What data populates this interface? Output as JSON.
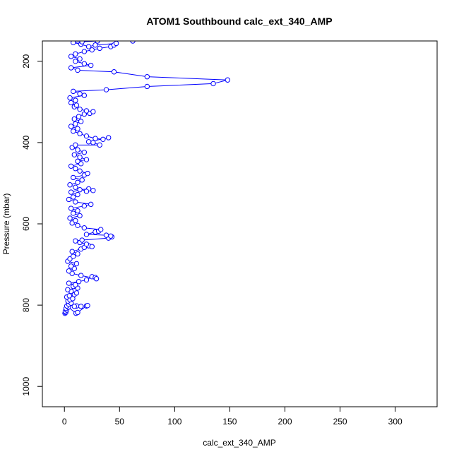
{
  "chart_data": {
    "type": "scatter",
    "title": "ATOM1 Southbound calc_ext_340_AMP",
    "xlabel": "calc_ext_340_AMP",
    "ylabel": "Pressure (mbar)",
    "xlim": [
      -20,
      338
    ],
    "ylim": [
      1050,
      150
    ],
    "y_reversed": true,
    "x_ticks": [
      0,
      50,
      100,
      150,
      200,
      250,
      300
    ],
    "y_ticks": [
      200,
      400,
      600,
      800,
      1000
    ],
    "grid": false,
    "legend": "none",
    "series": [
      {
        "marker": "open-circle",
        "connected": true,
        "color": "#0000ff",
        "points": [
          [
            0.5,
            820
          ],
          [
            1.2,
            818
          ],
          [
            0.8,
            815
          ],
          [
            2.0,
            812
          ],
          [
            1.5,
            808
          ],
          [
            3.5,
            805
          ],
          [
            2.2,
            802
          ],
          [
            10.5,
            820
          ],
          [
            12.0,
            818
          ],
          [
            20.0,
            802
          ],
          [
            21.0,
            801
          ],
          [
            15.0,
            803
          ],
          [
            11.0,
            802
          ],
          [
            9.0,
            803
          ],
          [
            4.0,
            798
          ],
          [
            6.0,
            795
          ],
          [
            3.2,
            790
          ],
          [
            5.0,
            787
          ],
          [
            7.5,
            784
          ],
          [
            2.1,
            780
          ],
          [
            4.5,
            777
          ],
          [
            9.0,
            774
          ],
          [
            11.0,
            770
          ],
          [
            6.0,
            766
          ],
          [
            3.0,
            762
          ],
          [
            12.0,
            758
          ],
          [
            8.0,
            754
          ],
          [
            10.0,
            750
          ],
          [
            4.0,
            746
          ],
          [
            13.0,
            742
          ],
          [
            20.0,
            738
          ],
          [
            25.0,
            730
          ],
          [
            28.0,
            732
          ],
          [
            29.0,
            735
          ],
          [
            15.0,
            727
          ],
          [
            7.0,
            722
          ],
          [
            4.0,
            716
          ],
          [
            9.0,
            710
          ],
          [
            6.0,
            704
          ],
          [
            11.0,
            698
          ],
          [
            3.0,
            692
          ],
          [
            5.0,
            686
          ],
          [
            8.0,
            680
          ],
          [
            12.0,
            674
          ],
          [
            7.0,
            668
          ],
          [
            15.0,
            662
          ],
          [
            18.0,
            658
          ],
          [
            22.0,
            654
          ],
          [
            25.0,
            656
          ],
          [
            20.0,
            650
          ],
          [
            14.0,
            646
          ],
          [
            10.0,
            642
          ],
          [
            16.0,
            640
          ],
          [
            40.0,
            635
          ],
          [
            43.0,
            632
          ],
          [
            42.0,
            630
          ],
          [
            38.0,
            628
          ],
          [
            20.0,
            626
          ],
          [
            28.0,
            620
          ],
          [
            31.0,
            618
          ],
          [
            33.0,
            614
          ],
          [
            18.0,
            610
          ],
          [
            12.0,
            604
          ],
          [
            7.0,
            598
          ],
          [
            10.0,
            592
          ],
          [
            5.0,
            586
          ],
          [
            14.0,
            580
          ],
          [
            8.0,
            574
          ],
          [
            12.0,
            568
          ],
          [
            6.0,
            562
          ],
          [
            18.0,
            556
          ],
          [
            24.0,
            552
          ],
          [
            10.0,
            546
          ],
          [
            4.0,
            540
          ],
          [
            8.0,
            534
          ],
          [
            12.0,
            528
          ],
          [
            6.0,
            522
          ],
          [
            14.0,
            516
          ],
          [
            22.0,
            514
          ],
          [
            26.0,
            518
          ],
          [
            20.0,
            520
          ],
          [
            10.0,
            510
          ],
          [
            5.0,
            504
          ],
          [
            12.0,
            498
          ],
          [
            16.0,
            492
          ],
          [
            8.0,
            486
          ],
          [
            18.0,
            480
          ],
          [
            21.0,
            476
          ],
          [
            14.0,
            470
          ],
          [
            10.0,
            464
          ],
          [
            6.0,
            458
          ],
          [
            15.0,
            452
          ],
          [
            12.0,
            446
          ],
          [
            20.0,
            442
          ],
          [
            14.0,
            436
          ],
          [
            9.0,
            430
          ],
          [
            18.0,
            424
          ],
          [
            12.0,
            418
          ],
          [
            7.0,
            412
          ],
          [
            10.0,
            406
          ],
          [
            32.0,
            406
          ],
          [
            26.0,
            400
          ],
          [
            22.0,
            398
          ],
          [
            40.0,
            388
          ],
          [
            35.0,
            392
          ],
          [
            28.0,
            390
          ],
          [
            20.0,
            384
          ],
          [
            14.0,
            378
          ],
          [
            8.0,
            372
          ],
          [
            12.0,
            366
          ],
          [
            6.0,
            360
          ],
          [
            10.0,
            354
          ],
          [
            15.0,
            348
          ],
          [
            9.0,
            342
          ],
          [
            13.0,
            336
          ],
          [
            18.0,
            330
          ],
          [
            23.0,
            328
          ],
          [
            26.0,
            324
          ],
          [
            20.0,
            322
          ],
          [
            14.0,
            318
          ],
          [
            9.0,
            312
          ],
          [
            11.0,
            308
          ],
          [
            6.0,
            302
          ],
          [
            10.0,
            296
          ],
          [
            5.0,
            290
          ],
          [
            18.0,
            284
          ],
          [
            14.0,
            280
          ],
          [
            8.0,
            274
          ],
          [
            38.0,
            270
          ],
          [
            75.0,
            262
          ],
          [
            135.0,
            255
          ],
          [
            148.0,
            246
          ],
          [
            75.0,
            238
          ],
          [
            45.0,
            226
          ],
          [
            12.0,
            222
          ],
          [
            6.0,
            216
          ],
          [
            24.0,
            210
          ],
          [
            18.0,
            206
          ],
          [
            10.0,
            200
          ],
          [
            14.0,
            194
          ],
          [
            6.0,
            188
          ],
          [
            10.0,
            182
          ],
          [
            18.0,
            176
          ],
          [
            25.0,
            172
          ],
          [
            32.0,
            168
          ],
          [
            42.0,
            164
          ],
          [
            45.0,
            160
          ],
          [
            47.0,
            156
          ],
          [
            28.0,
            160
          ],
          [
            22.0,
            164
          ],
          [
            15.0,
            158
          ],
          [
            8.0,
            154
          ],
          [
            16.0,
            152
          ],
          [
            30.0,
            150
          ],
          [
            62.0,
            150
          ]
        ]
      }
    ]
  }
}
